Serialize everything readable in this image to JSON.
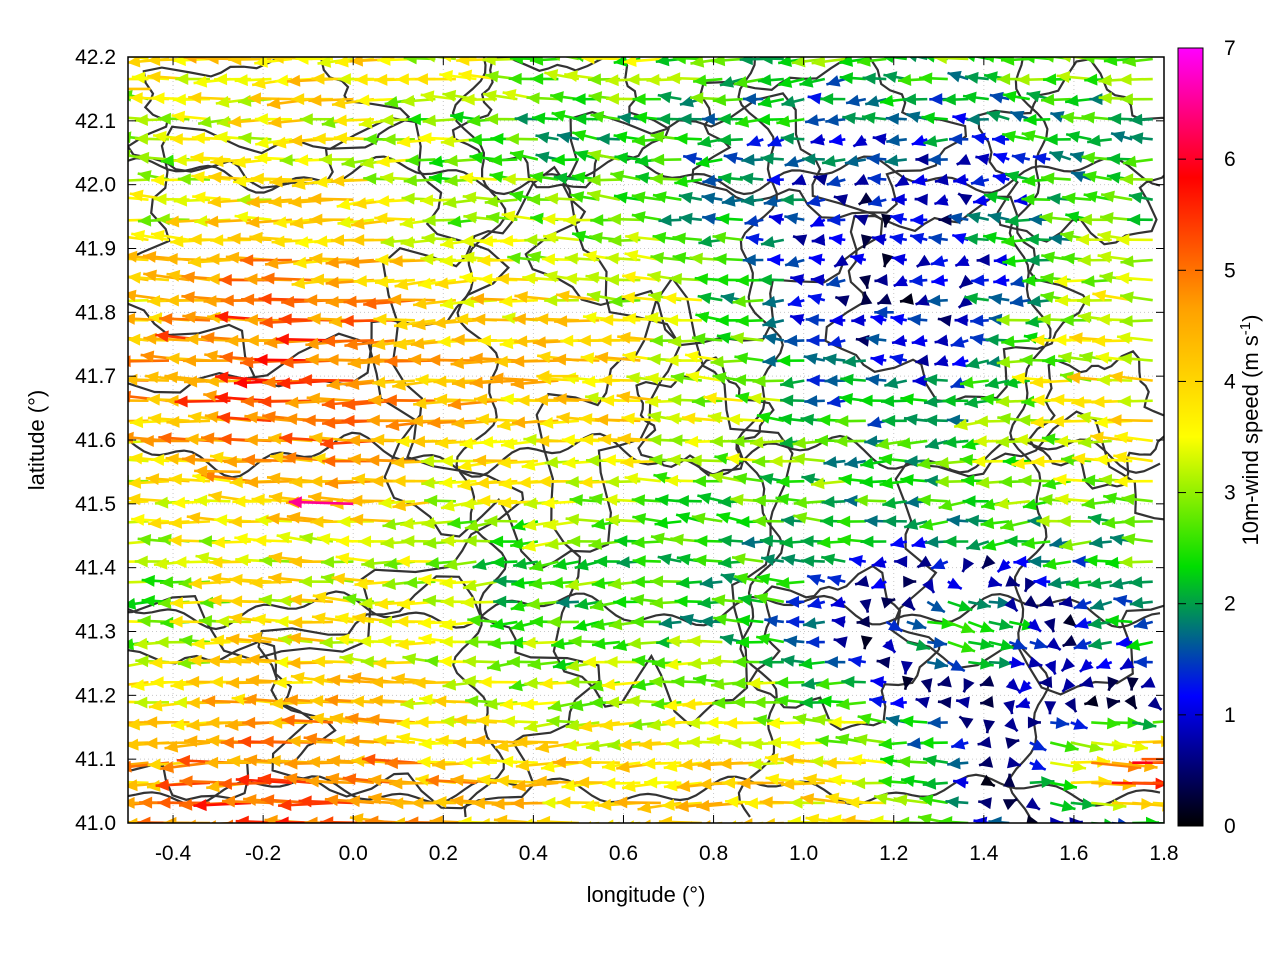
{
  "chart_data": {
    "type": "vector-field",
    "xlabel": "longitude (°)",
    "ylabel": "latitude (°)",
    "xlim": [
      -0.5,
      1.8
    ],
    "ylim": [
      41.0,
      42.2
    ],
    "x_ticks": [
      "-0.4",
      "-0.2",
      "0.0",
      "0.2",
      "0.4",
      "0.6",
      "0.8",
      "1.0",
      "1.2",
      "1.4",
      "1.6",
      "1.8"
    ],
    "x_tick_values": [
      -0.4,
      -0.2,
      0.0,
      0.2,
      0.4,
      0.6,
      0.8,
      1.0,
      1.2,
      1.4,
      1.6,
      1.8
    ],
    "y_ticks": [
      "41.0",
      "41.1",
      "41.2",
      "41.3",
      "41.4",
      "41.5",
      "41.6",
      "41.7",
      "41.8",
      "41.9",
      "42.0",
      "42.1",
      "42.2"
    ],
    "y_tick_values": [
      41.0,
      41.1,
      41.2,
      41.3,
      41.4,
      41.5,
      41.6,
      41.7,
      41.8,
      41.9,
      42.0,
      42.1,
      42.2
    ],
    "grid": true,
    "colorbar": {
      "label": "10m-wind speed (m s",
      "label_exponent": "-1",
      "label_close": ")",
      "range": [
        0,
        7
      ],
      "tick_values": [
        0,
        1,
        2,
        3,
        4,
        5,
        6,
        7
      ],
      "ticks": [
        "0",
        "1",
        "2",
        "3",
        "4",
        "5",
        "6",
        "7"
      ],
      "colors": [
        "#000000",
        "#0000ff",
        "#00dd00",
        "#ffff00",
        "#ffa000",
        "#ff0000",
        "#ff00ff"
      ]
    },
    "contours_color": "#333333",
    "vectors": [
      {
        "x": -0.45,
        "y": 42.15,
        "u": -4.2,
        "v": 0.0
      },
      {
        "x": -0.25,
        "y": 41.55,
        "u": -4.5,
        "v": 0.1
      },
      {
        "x": 0.0,
        "y": 41.5,
        "u": -6.5,
        "v": 0.2
      },
      {
        "x": 0.5,
        "y": 41.7,
        "u": -4.0,
        "v": 0.0
      },
      {
        "x": 1.2,
        "y": 41.8,
        "u": -1.5,
        "v": 0.0
      },
      {
        "x": 1.75,
        "y": 41.1,
        "u": 5.2,
        "v": 0.0
      }
    ]
  }
}
